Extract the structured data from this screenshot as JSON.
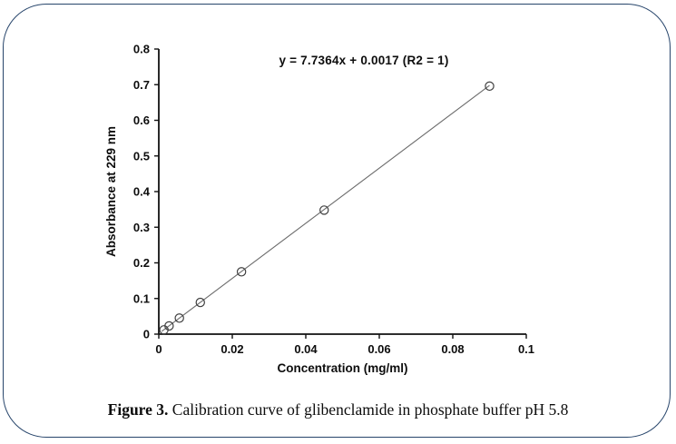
{
  "figure": {
    "caption_label": "Figure 3.",
    "caption_text": " Calibration curve of glibenclamide in phosphate buffer pH 5.8"
  },
  "chart_data": {
    "type": "scatter",
    "title": "",
    "equation_annotation": "y = 7.7364x + 0.0017 (R2 = 1)",
    "xlabel": "Concentration (mg/ml)",
    "ylabel": "Absorbance at 229 nm",
    "x": [
      0.0014,
      0.0028,
      0.0056,
      0.0113,
      0.0225,
      0.045,
      0.09
    ],
    "y": [
      0.012,
      0.023,
      0.045,
      0.089,
      0.175,
      0.348,
      0.696
    ],
    "trendline": {
      "slope": 7.7364,
      "intercept": 0.0017,
      "r_squared": 1
    },
    "xlim": [
      0,
      0.1
    ],
    "ylim": [
      0,
      0.8
    ],
    "x_ticks": [
      "0",
      "0.02",
      "0.04",
      "0.06",
      "0.08",
      "0.1"
    ],
    "y_ticks": [
      "0",
      "0.1",
      "0.2",
      "0.3",
      "0.4",
      "0.5",
      "0.6",
      "0.7",
      "0.8"
    ],
    "grid": false,
    "legend": "none",
    "marker": "open-circle",
    "colors": {
      "axis": "#111111",
      "marker_stroke": "#3f3f3f",
      "trendline": "#6b6b6b",
      "text": "#0d0d0d",
      "panel_border": "#27456b",
      "background": "#ffffff"
    }
  }
}
